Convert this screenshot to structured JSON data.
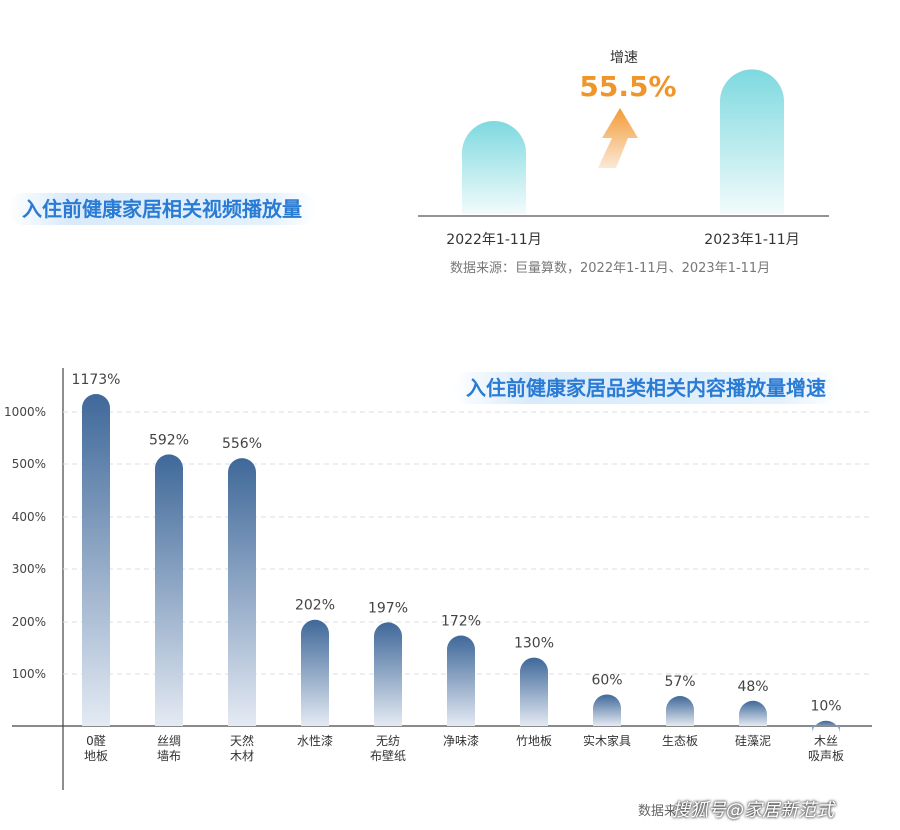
{
  "chart_data": [
    {
      "type": "bar",
      "title": "入住前健康家居相关视频播放量",
      "categories": [
        "2022年1-11月",
        "2023年1-11月"
      ],
      "values": [
        100,
        155.5
      ],
      "annotation": {
        "label": "增速",
        "value": "55.5%"
      },
      "source": "数据来源：巨量算数，2022年1-11月、2023年1-11月"
    },
    {
      "type": "bar",
      "title": "入住前健康家居品类相关内容播放量增速",
      "categories": [
        [
          "0醛",
          "地板"
        ],
        [
          "丝绸",
          "墙布"
        ],
        [
          "天然",
          "木材"
        ],
        [
          "水性漆"
        ],
        [
          "无纺",
          "布壁纸"
        ],
        [
          "净味漆"
        ],
        [
          "竹地板"
        ],
        [
          "实木家具"
        ],
        [
          "生态板"
        ],
        [
          "硅藻泥"
        ],
        [
          "木丝",
          "吸声板"
        ]
      ],
      "values": [
        1173,
        592,
        556,
        202,
        197,
        172,
        130,
        60,
        57,
        48,
        10
      ],
      "value_labels": [
        "1173%",
        "592%",
        "556%",
        "202%",
        "197%",
        "172%",
        "130%",
        "60%",
        "57%",
        "48%",
        "10%"
      ],
      "y_ticks": [
        "100%",
        "200%",
        "300%",
        "400%",
        "500%",
        "1000%"
      ],
      "grid": true,
      "source_partial": "数据来"
    }
  ],
  "colors": {
    "title": "#2a7bd4",
    "top_bar_top": "#7dd9df",
    "top_bar_bottom": "#f2fbfc",
    "arrow_top": "#f39a36",
    "arrow_bottom": "#fbe9d6",
    "growth": "#f0952a",
    "bar_top": "#3f6899",
    "bar_bottom": "#e4eaf3"
  },
  "watermark": "搜狐号@家居新范式"
}
